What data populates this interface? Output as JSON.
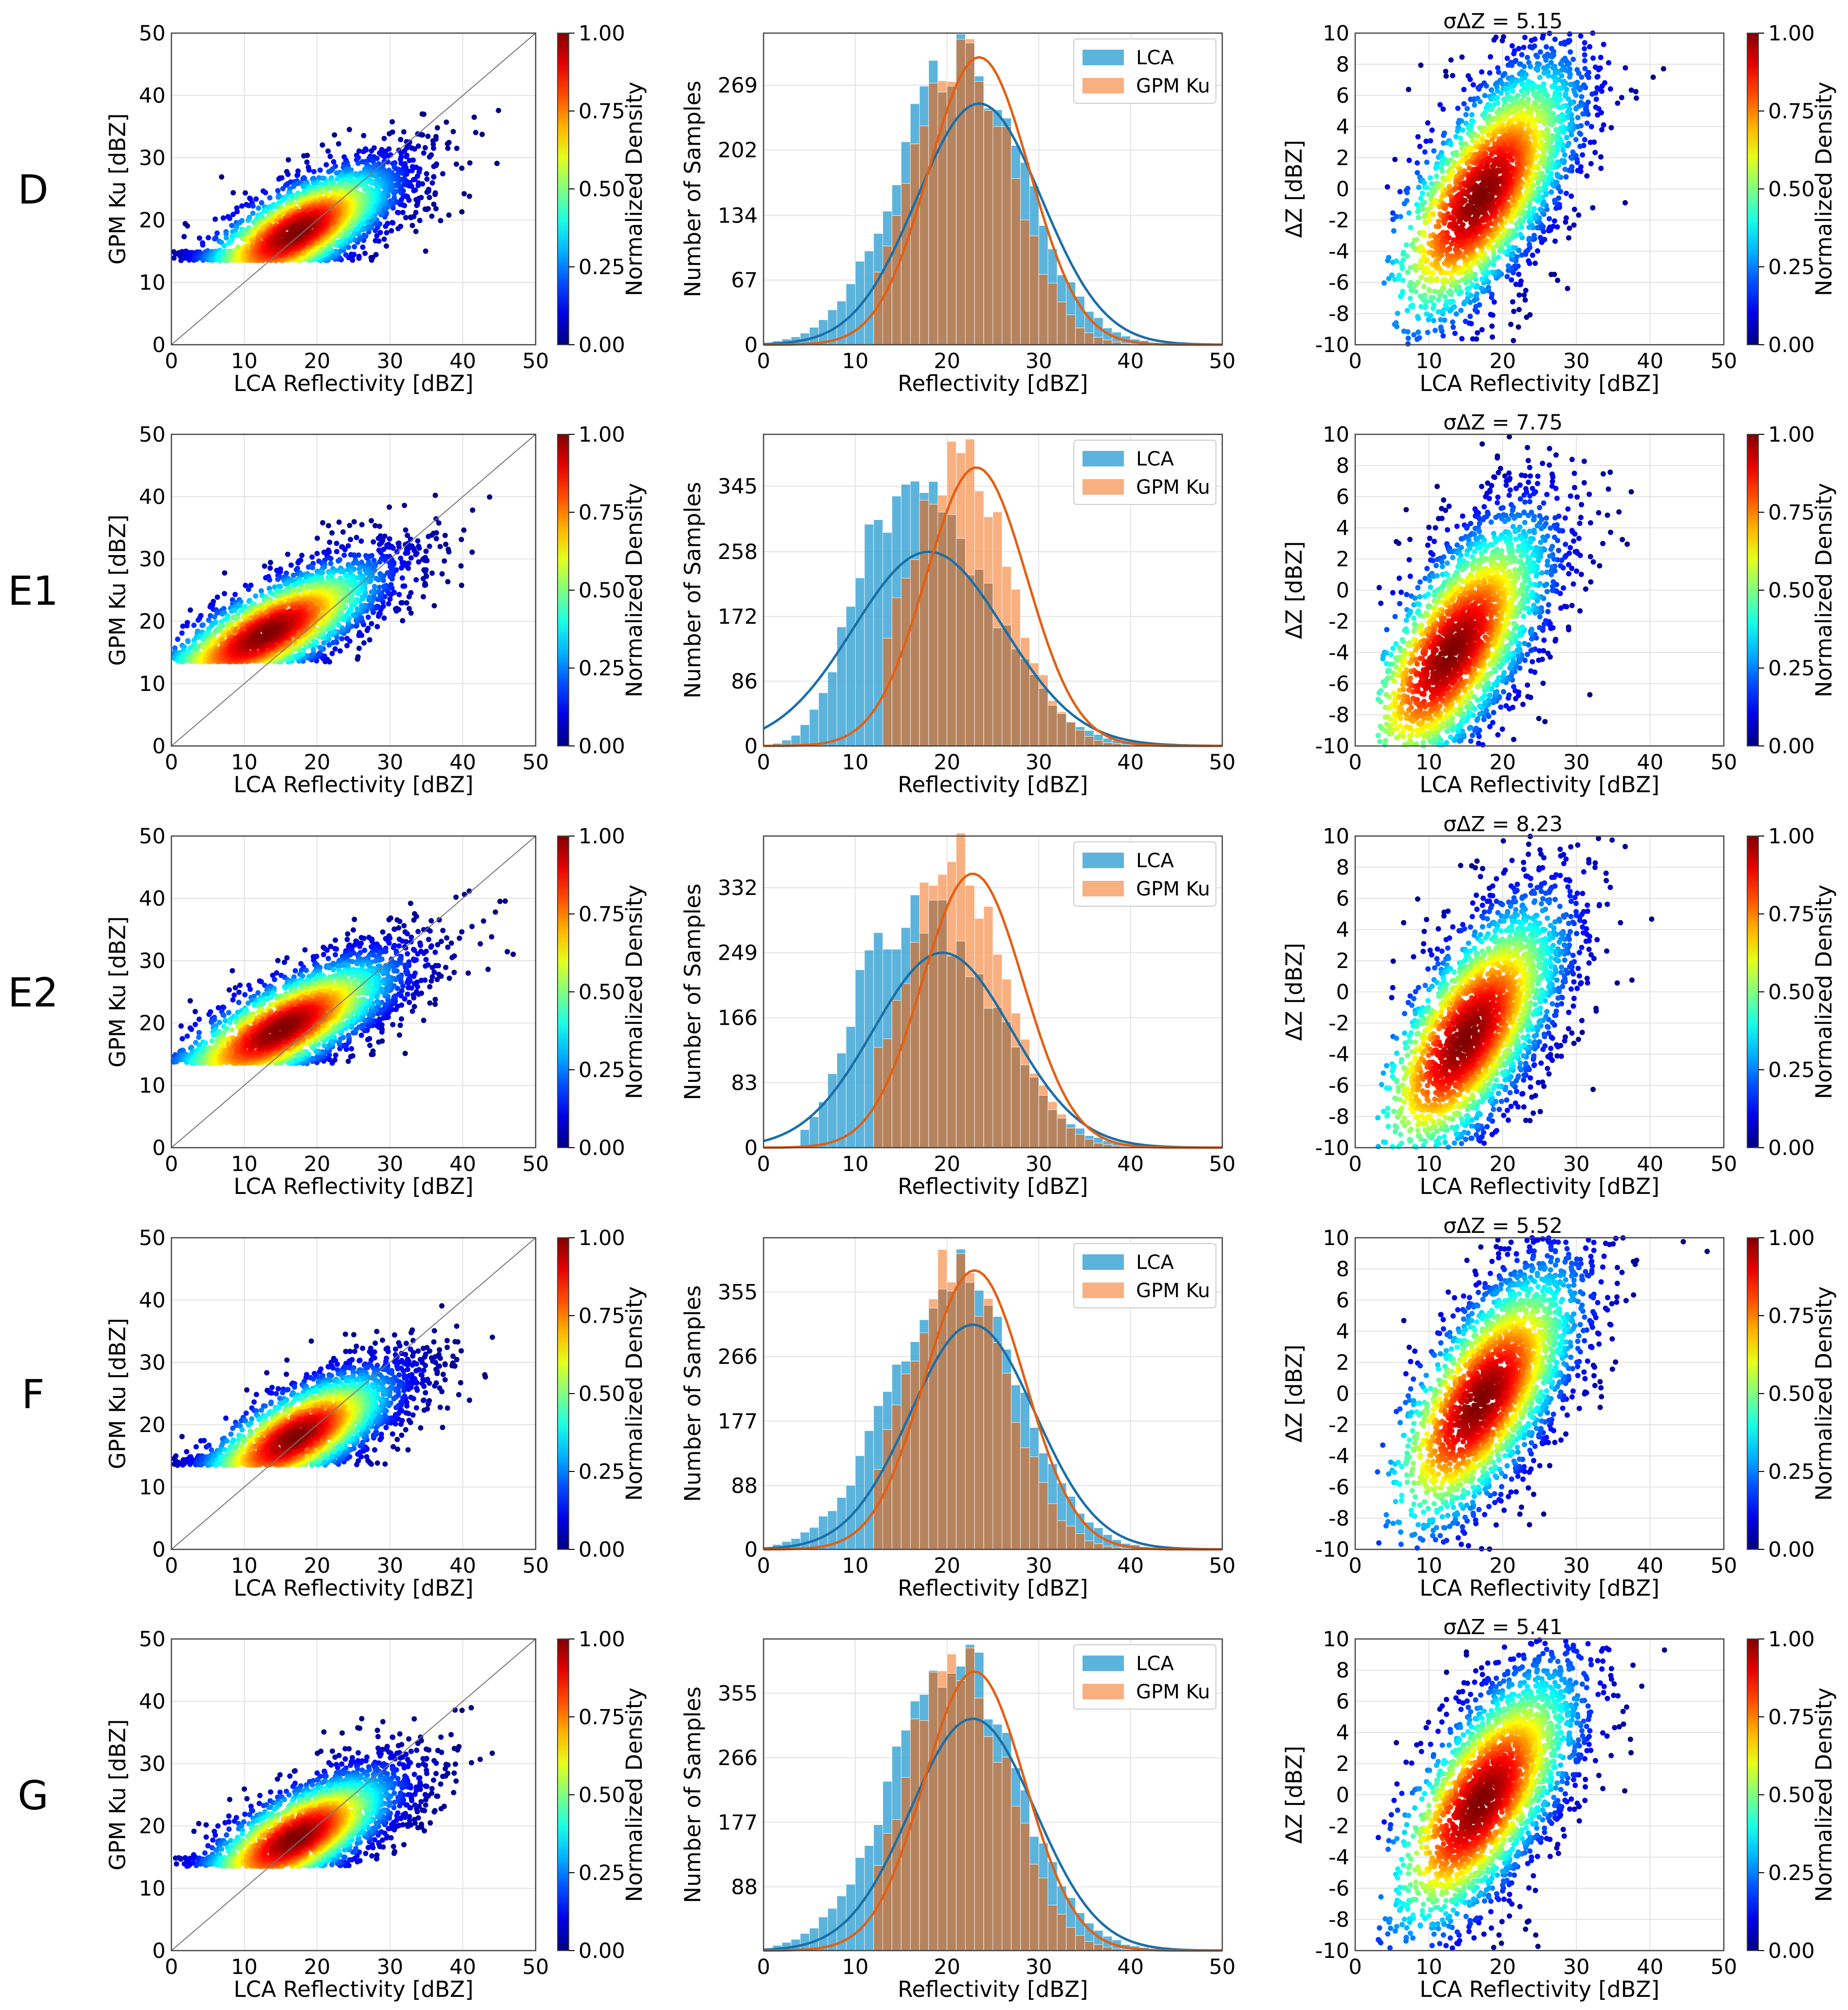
{
  "figure": {
    "rows": [
      "D",
      "E1",
      "E2",
      "F",
      "G"
    ],
    "colorbar": {
      "label": "Normalized Density",
      "ticks": [
        "0.00",
        "0.25",
        "0.50",
        "0.75",
        "1.00"
      ]
    }
  },
  "chart_data": [
    {
      "panel": "D-scatter",
      "type": "scatter",
      "xlabel": "LCA Reflectivity [dBZ]",
      "ylabel": "GPM Ku [dBZ]",
      "xlim": [
        0,
        50
      ],
      "ylim": [
        0,
        50
      ],
      "xticks": [
        0,
        10,
        20,
        30,
        40,
        50
      ],
      "yticks": [
        0,
        10,
        20,
        30,
        40,
        50
      ],
      "one_to_one_line": true,
      "colorbar_label": "Normalized Density",
      "density_center": [
        17,
        18
      ],
      "x_spread": 6,
      "y_spread": 4,
      "grid": true
    },
    {
      "panel": "D-hist",
      "type": "bar",
      "xlabel": "Reflectivity [dBZ]",
      "ylabel": "Number of Samples",
      "xlim": [
        0,
        50
      ],
      "yticks": [
        0,
        67,
        134,
        202,
        269
      ],
      "ylim": [
        0,
        323
      ],
      "legend": [
        "LCA",
        "GPM Ku"
      ],
      "legend_position": "top-right",
      "series": [
        {
          "name": "LCA",
          "fit_mean": 23.5,
          "fit_sd": 6.8,
          "fit_peak": 250,
          "hist_peak": 300,
          "min": 1
        },
        {
          "name": "GPM Ku",
          "fit_mean": 23.5,
          "fit_sd": 5.5,
          "fit_peak": 298,
          "hist_peak": 315,
          "min": 12
        }
      ],
      "grid": true
    },
    {
      "panel": "D-delta",
      "type": "scatter",
      "title": "σΔZ = 5.15",
      "xlabel": "LCA Reflectivity [dBZ]",
      "ylabel": "ΔZ [dBZ]",
      "xlim": [
        0,
        50
      ],
      "ylim": [
        -10,
        10
      ],
      "xticks": [
        0,
        10,
        20,
        30,
        40,
        50
      ],
      "yticks": [
        -10,
        -8,
        -6,
        -4,
        -2,
        0,
        2,
        4,
        6,
        8,
        10
      ],
      "colorbar_label": "Normalized Density",
      "density_center": [
        17,
        -0.5
      ],
      "grid": true
    },
    {
      "panel": "E1-scatter",
      "type": "scatter",
      "xlabel": "LCA Reflectivity [dBZ]",
      "ylabel": "GPM Ku [dBZ]",
      "xlim": [
        0,
        50
      ],
      "ylim": [
        0,
        50
      ],
      "xticks": [
        0,
        10,
        20,
        30,
        40,
        50
      ],
      "yticks": [
        0,
        10,
        20,
        30,
        40,
        50
      ],
      "one_to_one_line": true,
      "colorbar_label": "Normalized Density",
      "density_center": [
        13,
        18
      ],
      "x_spread": 7,
      "y_spread": 4,
      "grid": true
    },
    {
      "panel": "E1-hist",
      "type": "bar",
      "xlabel": "Reflectivity [dBZ]",
      "ylabel": "Number of Samples",
      "xlim": [
        0,
        50
      ],
      "yticks": [
        0,
        86,
        172,
        258,
        345
      ],
      "ylim": [
        0,
        414
      ],
      "legend": [
        "LCA",
        "GPM Ku"
      ],
      "legend_position": "top-right",
      "series": [
        {
          "name": "LCA",
          "fit_mean": 18,
          "fit_sd": 8.2,
          "fit_peak": 258,
          "hist_peak": 345,
          "min": 0
        },
        {
          "name": "GPM Ku",
          "fit_mean": 23.2,
          "fit_sd": 5.5,
          "fit_peak": 370,
          "hist_peak": 390,
          "min": 13
        }
      ],
      "grid": true
    },
    {
      "panel": "E1-delta",
      "type": "scatter",
      "title": "σΔZ = 7.75",
      "xlabel": "LCA Reflectivity [dBZ]",
      "ylabel": "ΔZ [dBZ]",
      "xlim": [
        0,
        50
      ],
      "ylim": [
        -10,
        10
      ],
      "xticks": [
        0,
        10,
        20,
        30,
        40,
        50
      ],
      "yticks": [
        -10,
        -8,
        -6,
        -4,
        -2,
        0,
        2,
        4,
        6,
        8,
        10
      ],
      "colorbar_label": "Normalized Density",
      "density_center": [
        13,
        -4
      ],
      "grid": true
    },
    {
      "panel": "E2-scatter",
      "type": "scatter",
      "xlabel": "LCA Reflectivity [dBZ]",
      "ylabel": "GPM Ku [dBZ]",
      "xlim": [
        0,
        50
      ],
      "ylim": [
        0,
        50
      ],
      "xticks": [
        0,
        10,
        20,
        30,
        40,
        50
      ],
      "yticks": [
        0,
        10,
        20,
        30,
        40,
        50
      ],
      "one_to_one_line": true,
      "colorbar_label": "Normalized Density",
      "density_center": [
        15,
        19
      ],
      "x_spread": 7,
      "y_spread": 4,
      "grid": true
    },
    {
      "panel": "E2-hist",
      "type": "bar",
      "xlabel": "Reflectivity [dBZ]",
      "ylabel": "Number of Samples",
      "xlim": [
        0,
        50
      ],
      "yticks": [
        0,
        83,
        166,
        249,
        332
      ],
      "ylim": [
        0,
        398
      ],
      "legend": [
        "LCA",
        "GPM Ku"
      ],
      "legend_position": "top-right",
      "series": [
        {
          "name": "LCA",
          "fit_mean": 19.5,
          "fit_sd": 7.5,
          "fit_peak": 249,
          "hist_peak": 300,
          "min": 4
        },
        {
          "name": "GPM Ku",
          "fit_mean": 22.8,
          "fit_sd": 5.5,
          "fit_peak": 350,
          "hist_peak": 375,
          "min": 12
        }
      ],
      "grid": true
    },
    {
      "panel": "E2-delta",
      "type": "scatter",
      "title": "σΔZ = 8.23",
      "xlabel": "LCA Reflectivity [dBZ]",
      "ylabel": "ΔZ [dBZ]",
      "xlim": [
        0,
        50
      ],
      "ylim": [
        -10,
        10
      ],
      "xticks": [
        0,
        10,
        20,
        30,
        40,
        50
      ],
      "yticks": [
        -10,
        -8,
        -6,
        -4,
        -2,
        0,
        2,
        4,
        6,
        8,
        10
      ],
      "colorbar_label": "Normalized Density",
      "density_center": [
        15,
        -3
      ],
      "grid": true
    },
    {
      "panel": "F-scatter",
      "type": "scatter",
      "xlabel": "LCA Reflectivity [dBZ]",
      "ylabel": "GPM Ku [dBZ]",
      "xlim": [
        0,
        50
      ],
      "ylim": [
        0,
        50
      ],
      "xticks": [
        0,
        10,
        20,
        30,
        40,
        50
      ],
      "yticks": [
        0,
        10,
        20,
        30,
        40,
        50
      ],
      "one_to_one_line": true,
      "colorbar_label": "Normalized Density",
      "density_center": [
        17,
        18
      ],
      "x_spread": 6,
      "y_spread": 4,
      "grid": true
    },
    {
      "panel": "F-hist",
      "type": "bar",
      "xlabel": "Reflectivity [dBZ]",
      "ylabel": "Number of Samples",
      "xlim": [
        0,
        50
      ],
      "yticks": [
        0,
        88,
        177,
        266,
        355
      ],
      "ylim": [
        0,
        430
      ],
      "legend": [
        "LCA",
        "GPM Ku"
      ],
      "legend_position": "top-right",
      "series": [
        {
          "name": "LCA",
          "fit_mean": 22.8,
          "fit_sd": 6.8,
          "fit_peak": 310,
          "hist_peak": 390,
          "min": 1
        },
        {
          "name": "GPM Ku",
          "fit_mean": 23,
          "fit_sd": 5.5,
          "fit_peak": 385,
          "hist_peak": 400,
          "min": 12
        }
      ],
      "grid": true
    },
    {
      "panel": "F-delta",
      "type": "scatter",
      "title": "σΔZ = 5.52",
      "xlabel": "LCA Reflectivity [dBZ]",
      "ylabel": "ΔZ [dBZ]",
      "xlim": [
        0,
        50
      ],
      "ylim": [
        -10,
        10
      ],
      "xticks": [
        0,
        10,
        20,
        30,
        40,
        50
      ],
      "yticks": [
        -10,
        -8,
        -6,
        -4,
        -2,
        0,
        2,
        4,
        6,
        8,
        10
      ],
      "colorbar_label": "Normalized Density",
      "density_center": [
        17,
        -0.5
      ],
      "grid": true
    },
    {
      "panel": "G-scatter",
      "type": "scatter",
      "xlabel": "LCA Reflectivity [dBZ]",
      "ylabel": "GPM Ku [dBZ]",
      "xlim": [
        0,
        50
      ],
      "ylim": [
        0,
        50
      ],
      "xticks": [
        0,
        10,
        20,
        30,
        40,
        50
      ],
      "yticks": [
        0,
        10,
        20,
        30,
        40,
        50
      ],
      "one_to_one_line": true,
      "colorbar_label": "Normalized Density",
      "density_center": [
        17,
        18
      ],
      "x_spread": 6,
      "y_spread": 4,
      "grid": true
    },
    {
      "panel": "G-hist",
      "type": "bar",
      "xlabel": "Reflectivity [dBZ]",
      "ylabel": "Number of Samples",
      "xlim": [
        0,
        50
      ],
      "yticks": [
        88,
        177,
        266,
        355
      ],
      "ylim": [
        0,
        430
      ],
      "legend": [
        "LCA",
        "GPM Ku"
      ],
      "legend_position": "top-right",
      "series": [
        {
          "name": "LCA",
          "fit_mean": 22.8,
          "fit_sd": 6.8,
          "fit_peak": 320,
          "hist_peak": 405,
          "min": 1
        },
        {
          "name": "GPM Ku",
          "fit_mean": 23,
          "fit_sd": 5.5,
          "fit_peak": 385,
          "hist_peak": 410,
          "min": 12
        }
      ],
      "grid": true
    },
    {
      "panel": "G-delta",
      "type": "scatter",
      "title": "σΔZ = 5.41",
      "xlabel": "LCA Reflectivity [dBZ]",
      "ylabel": "ΔZ [dBZ]",
      "xlim": [
        0,
        50
      ],
      "ylim": [
        -10,
        10
      ],
      "xticks": [
        0,
        10,
        20,
        30,
        40,
        50
      ],
      "yticks": [
        -10,
        -8,
        -6,
        -4,
        -2,
        0,
        2,
        4,
        6,
        8,
        10
      ],
      "colorbar_label": "Normalized Density",
      "density_center": [
        17,
        -0.5
      ],
      "grid": true
    }
  ],
  "colors": {
    "lca": "#3fa7d6",
    "gpm": "#f7a26b",
    "overlap": "#b5845f",
    "lca_fit": "#1a6fa8",
    "gpm_fit": "#e35f14"
  }
}
